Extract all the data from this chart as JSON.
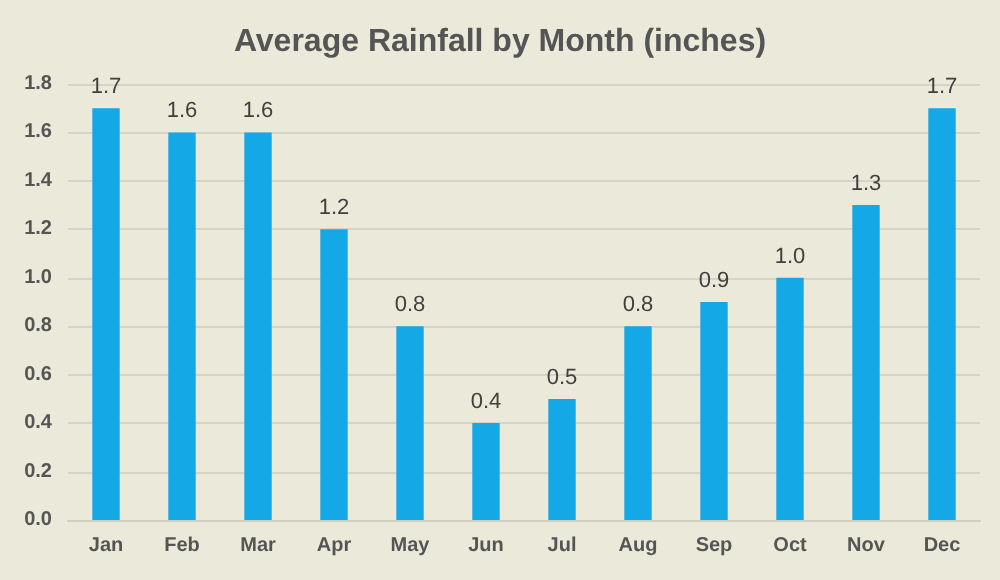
{
  "chart_data": {
    "type": "bar",
    "title": "Average Rainfall by Month (inches)",
    "categories": [
      "Jan",
      "Feb",
      "Mar",
      "Apr",
      "May",
      "Jun",
      "Jul",
      "Aug",
      "Sep",
      "Oct",
      "Nov",
      "Dec"
    ],
    "values": [
      1.7,
      1.6,
      1.6,
      1.2,
      0.8,
      0.4,
      0.5,
      0.8,
      0.9,
      1.0,
      1.3,
      1.7
    ],
    "value_labels": [
      "1.7",
      "1.6",
      "1.6",
      "1.2",
      "0.8",
      "0.4",
      "0.5",
      "0.8",
      "0.9",
      "1.0",
      "1.3",
      "1.7"
    ],
    "color": "#14a8e6",
    "ylim": [
      0,
      1.8
    ],
    "yticks": [
      {
        "value": 0,
        "label": "0.0"
      },
      {
        "value": 0.2,
        "label": "0.2"
      },
      {
        "value": 0.4,
        "label": "0.4"
      },
      {
        "value": 0.6,
        "label": "0.6"
      },
      {
        "value": 0.8,
        "label": "0.8"
      },
      {
        "value": 1,
        "label": "1.0"
      },
      {
        "value": 1.2,
        "label": "1.2"
      },
      {
        "value": 1.4,
        "label": "1.4"
      },
      {
        "value": 1.6,
        "label": "1.6"
      },
      {
        "value": 1.8,
        "label": "1.8"
      }
    ],
    "grid": "y"
  }
}
